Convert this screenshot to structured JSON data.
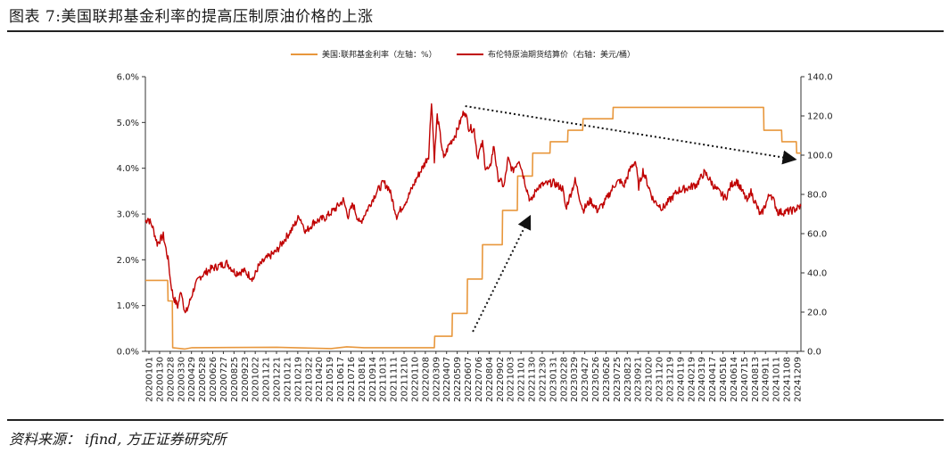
{
  "header": {
    "title": "图表 7:美国联邦基金利率的提高压制原油价格的上涨"
  },
  "footer": {
    "source": "资料来源： ifind, 方正证券研究所"
  },
  "colors": {
    "fed_rate": "#E8973C",
    "brent": "#C00000",
    "arrow": "#111111"
  },
  "chart_data": {
    "type": "line",
    "title": "",
    "legend_position": "top-center",
    "grid": false,
    "x_tick_labels": [
      "20200101",
      "20200130",
      "20200228",
      "20200330",
      "20200429",
      "20200528",
      "20200626",
      "20200727",
      "20200825",
      "20200923",
      "20201022",
      "20201121",
      "20201221",
      "20210121",
      "20210219",
      "20210322",
      "20210420",
      "20210519",
      "20210617",
      "20210716",
      "20210816",
      "20210914",
      "20211013",
      "20211111",
      "20211210",
      "20220110",
      "20220208",
      "20220309",
      "20220407",
      "20220509",
      "20220607",
      "20220706",
      "20220804",
      "20220902",
      "20221003",
      "20221101",
      "20221130",
      "20221230",
      "20230131",
      "20230228",
      "20230329",
      "20230427",
      "20230526",
      "20230626",
      "20230725",
      "20230823",
      "20230921",
      "20231020",
      "20231120",
      "20231219",
      "20240119",
      "20240219",
      "20240319",
      "20240417",
      "20240516",
      "20240614",
      "20240715",
      "20240813",
      "20240911",
      "20241011",
      "20241108",
      "20241209"
    ],
    "y_left": {
      "label": "",
      "ylim": [
        0,
        6
      ],
      "ticks": [
        "0.0%",
        "1.0%",
        "2.0%",
        "3.0%",
        "4.0%",
        "5.0%",
        "6.0%"
      ]
    },
    "y_right": {
      "label": "",
      "ylim": [
        0,
        140
      ],
      "ticks": [
        "0.0",
        "20.0",
        "40.0",
        "60.0",
        "80.0",
        "100.0",
        "120.0",
        "140.0"
      ]
    },
    "series": [
      {
        "name": "美国:联邦基金利率（左轴：%）",
        "axis": "left",
        "step": true,
        "points": [
          [
            "2020-01-01",
            1.55
          ],
          [
            "2020-03-03",
            1.55
          ],
          [
            "2020-03-04",
            1.1
          ],
          [
            "2020-03-16",
            1.1
          ],
          [
            "2020-03-17",
            0.08
          ],
          [
            "2020-04-20",
            0.05
          ],
          [
            "2020-05-10",
            0.08
          ],
          [
            "2021-01-01",
            0.09
          ],
          [
            "2021-06-01",
            0.06
          ],
          [
            "2021-07-15",
            0.1
          ],
          [
            "2021-09-01",
            0.08
          ],
          [
            "2022-03-16",
            0.08
          ],
          [
            "2022-03-17",
            0.33
          ],
          [
            "2022-05-04",
            0.33
          ],
          [
            "2022-05-05",
            0.83
          ],
          [
            "2022-06-15",
            0.83
          ],
          [
            "2022-06-16",
            1.58
          ],
          [
            "2022-07-27",
            1.58
          ],
          [
            "2022-07-28",
            2.33
          ],
          [
            "2022-09-21",
            2.33
          ],
          [
            "2022-09-22",
            3.08
          ],
          [
            "2022-11-02",
            3.08
          ],
          [
            "2022-11-03",
            3.83
          ],
          [
            "2022-12-14",
            3.83
          ],
          [
            "2022-12-15",
            4.33
          ],
          [
            "2023-02-01",
            4.33
          ],
          [
            "2023-02-02",
            4.58
          ],
          [
            "2023-03-22",
            4.58
          ],
          [
            "2023-03-23",
            4.83
          ],
          [
            "2023-05-03",
            4.83
          ],
          [
            "2023-05-04",
            5.08
          ],
          [
            "2023-07-26",
            5.08
          ],
          [
            "2023-07-27",
            5.33
          ],
          [
            "2024-09-18",
            5.33
          ],
          [
            "2024-09-19",
            4.83
          ],
          [
            "2024-11-07",
            4.83
          ],
          [
            "2024-11-08",
            4.58
          ],
          [
            "2024-12-18",
            4.58
          ],
          [
            "2024-12-19",
            4.33
          ],
          [
            "2024-12-31",
            4.33
          ]
        ]
      },
      {
        "name": "布伦特原油期货结算价（右轴：美元/桶）",
        "axis": "right",
        "step": false,
        "points": [
          [
            "2020-01-01",
            66
          ],
          [
            "2020-01-08",
            68
          ],
          [
            "2020-01-20",
            64
          ],
          [
            "2020-02-03",
            55
          ],
          [
            "2020-02-20",
            59
          ],
          [
            "2020-03-06",
            45
          ],
          [
            "2020-03-10",
            37
          ],
          [
            "2020-03-18",
            28
          ],
          [
            "2020-03-31",
            23
          ],
          [
            "2020-04-10",
            31
          ],
          [
            "2020-04-21",
            19
          ],
          [
            "2020-04-28",
            22
          ],
          [
            "2020-05-15",
            32
          ],
          [
            "2020-06-01",
            38
          ],
          [
            "2020-06-15",
            40
          ],
          [
            "2020-07-01",
            42
          ],
          [
            "2020-08-15",
            45
          ],
          [
            "2020-09-08",
            40
          ],
          [
            "2020-10-01",
            41
          ],
          [
            "2020-10-28",
            37
          ],
          [
            "2020-11-10",
            43
          ],
          [
            "2020-12-01",
            47
          ],
          [
            "2020-12-31",
            51
          ],
          [
            "2021-01-15",
            55
          ],
          [
            "2021-02-15",
            63
          ],
          [
            "2021-03-05",
            69
          ],
          [
            "2021-03-23",
            61
          ],
          [
            "2021-04-15",
            66
          ],
          [
            "2021-05-15",
            68
          ],
          [
            "2021-06-15",
            73
          ],
          [
            "2021-07-05",
            77
          ],
          [
            "2021-07-19",
            69
          ],
          [
            "2021-08-01",
            75
          ],
          [
            "2021-08-20",
            65
          ],
          [
            "2021-09-15",
            74
          ],
          [
            "2021-10-05",
            81
          ],
          [
            "2021-10-25",
            86
          ],
          [
            "2021-11-10",
            83
          ],
          [
            "2021-12-01",
            69
          ],
          [
            "2021-12-31",
            78
          ],
          [
            "2022-01-25",
            88
          ],
          [
            "2022-02-15",
            95
          ],
          [
            "2022-02-28",
            100
          ],
          [
            "2022-03-08",
            128
          ],
          [
            "2022-03-16",
            98
          ],
          [
            "2022-03-24",
            120
          ],
          [
            "2022-04-11",
            98
          ],
          [
            "2022-04-25",
            105
          ],
          [
            "2022-05-15",
            111
          ],
          [
            "2022-06-08",
            123
          ],
          [
            "2022-06-20",
            114
          ],
          [
            "2022-07-05",
            113
          ],
          [
            "2022-07-14",
            99
          ],
          [
            "2022-07-28",
            106
          ],
          [
            "2022-08-05",
            94
          ],
          [
            "2022-08-16",
            92
          ],
          [
            "2022-08-29",
            105
          ],
          [
            "2022-09-08",
            89
          ],
          [
            "2022-09-26",
            84
          ],
          [
            "2022-10-07",
            98
          ],
          [
            "2022-10-20",
            92
          ],
          [
            "2022-11-07",
            98
          ],
          [
            "2022-11-28",
            83
          ],
          [
            "2022-12-09",
            76
          ],
          [
            "2022-12-29",
            84
          ],
          [
            "2023-01-15",
            85
          ],
          [
            "2023-02-10",
            86
          ],
          [
            "2023-03-08",
            83
          ],
          [
            "2023-03-17",
            73
          ],
          [
            "2023-04-12",
            87
          ],
          [
            "2023-05-04",
            72
          ],
          [
            "2023-05-25",
            77
          ],
          [
            "2023-06-12",
            72
          ],
          [
            "2023-06-30",
            75
          ],
          [
            "2023-07-31",
            85
          ],
          [
            "2023-08-15",
            87
          ],
          [
            "2023-08-25",
            84
          ],
          [
            "2023-09-15",
            94
          ],
          [
            "2023-09-27",
            97
          ],
          [
            "2023-10-06",
            84
          ],
          [
            "2023-10-18",
            92
          ],
          [
            "2023-11-16",
            77
          ],
          [
            "2023-12-12",
            73
          ],
          [
            "2024-01-05",
            78
          ],
          [
            "2024-01-25",
            82
          ],
          [
            "2024-02-15",
            83
          ],
          [
            "2024-03-15",
            85
          ],
          [
            "2024-04-05",
            91
          ],
          [
            "2024-04-12",
            90
          ],
          [
            "2024-05-07",
            83
          ],
          [
            "2024-06-04",
            78
          ],
          [
            "2024-06-20",
            85
          ],
          [
            "2024-07-05",
            87
          ],
          [
            "2024-08-05",
            76
          ],
          [
            "2024-08-12",
            82
          ],
          [
            "2024-09-10",
            69
          ],
          [
            "2024-10-07",
            81
          ],
          [
            "2024-10-28",
            71
          ],
          [
            "2024-11-15",
            71
          ],
          [
            "2024-12-10",
            72
          ],
          [
            "2024-12-31",
            74
          ]
        ]
      }
    ],
    "annotations": [
      {
        "type": "dotted-arrow",
        "from": [
          "2022-06-10",
          125
        ],
        "to": [
          "2024-12-10",
          98
        ],
        "axis": "right"
      },
      {
        "type": "dotted-arrow",
        "from": [
          "2022-07-01",
          10
        ],
        "to": [
          "2022-12-05",
          68
        ],
        "axis": "right"
      }
    ]
  }
}
